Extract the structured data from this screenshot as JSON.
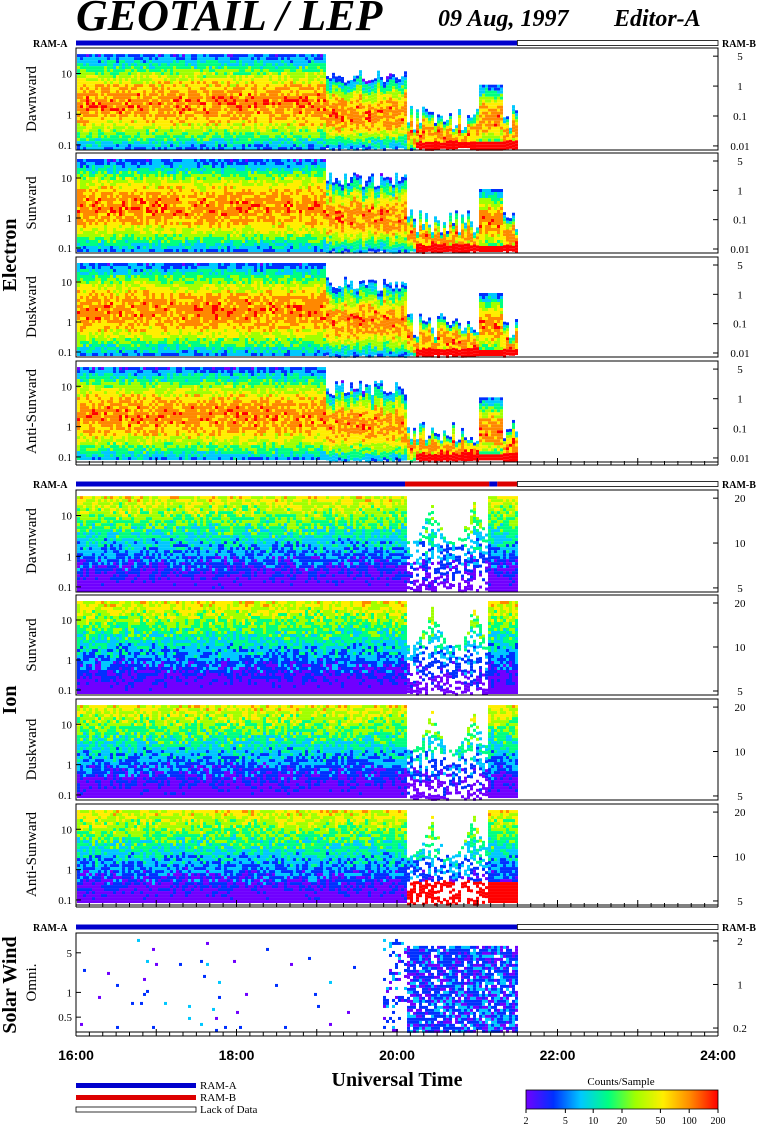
{
  "header": {
    "title": "GEOTAIL / LEP",
    "date": "09 Aug, 1997",
    "editor": "Editor-A"
  },
  "chart_data": {
    "type": "heatmap",
    "xlabel": "Universal Time",
    "x_ticks": [
      "16:00",
      "18:00",
      "20:00",
      "22:00",
      "24:00"
    ],
    "x_range_hours": [
      16,
      24
    ],
    "data_end_hour": 21.5,
    "ram_labels": {
      "a": "RAM-A",
      "b": "RAM-B"
    },
    "groups": [
      {
        "name": "Electron",
        "left_ticks": [
          "10",
          "1",
          "0.1"
        ],
        "right_ticks": [
          "5",
          "1",
          "0.1",
          "0.01"
        ],
        "ram_status": [
          {
            "from": 16.0,
            "to": 21.5,
            "state": "RAM-A"
          },
          {
            "from": 21.5,
            "to": 24.0,
            "state": "Lack of Data"
          }
        ],
        "panels": [
          "Dawnward",
          "Sunward",
          "Duskward",
          "Anti-Sunward"
        ]
      },
      {
        "name": "Ion",
        "left_ticks": [
          "10",
          "1",
          "0.1"
        ],
        "right_ticks": [
          "20",
          "10",
          "5"
        ],
        "ram_status": [
          {
            "from": 16.0,
            "to": 20.1,
            "state": "RAM-A"
          },
          {
            "from": 20.1,
            "to": 21.15,
            "state": "RAM-B"
          },
          {
            "from": 21.15,
            "to": 21.25,
            "state": "RAM-A"
          },
          {
            "from": 21.25,
            "to": 21.5,
            "state": "RAM-B"
          },
          {
            "from": 21.5,
            "to": 24.0,
            "state": "Lack of Data"
          }
        ],
        "panels": [
          "Dawnward",
          "Sunward",
          "Duskward",
          "Anti-Sunward"
        ]
      },
      {
        "name": "Solar Wind",
        "left_ticks": [
          "5",
          "1",
          "0.5"
        ],
        "right_ticks": [
          "2",
          "1",
          "0.2"
        ],
        "ram_status": [
          {
            "from": 16.0,
            "to": 21.5,
            "state": "RAM-A"
          },
          {
            "from": 21.5,
            "to": 24.0,
            "state": "Lack of Data"
          }
        ],
        "panels": [
          "Omni."
        ]
      }
    ],
    "legend": {
      "ram_a": "RAM-A",
      "ram_b": "RAM-B",
      "lack": "Lack of Data"
    },
    "colorbar": {
      "title": "Counts/Sample",
      "ticks": [
        "2",
        "5",
        "10",
        "20",
        "50",
        "100",
        "200"
      ]
    },
    "colors": {
      "ram_a": "#0000cc",
      "ram_b": "#dd0000",
      "spectrum": [
        "#7000ff",
        "#0030ff",
        "#00c8ff",
        "#00ff80",
        "#a0ff00",
        "#ffee00",
        "#ff8800",
        "#ff0000"
      ]
    }
  }
}
